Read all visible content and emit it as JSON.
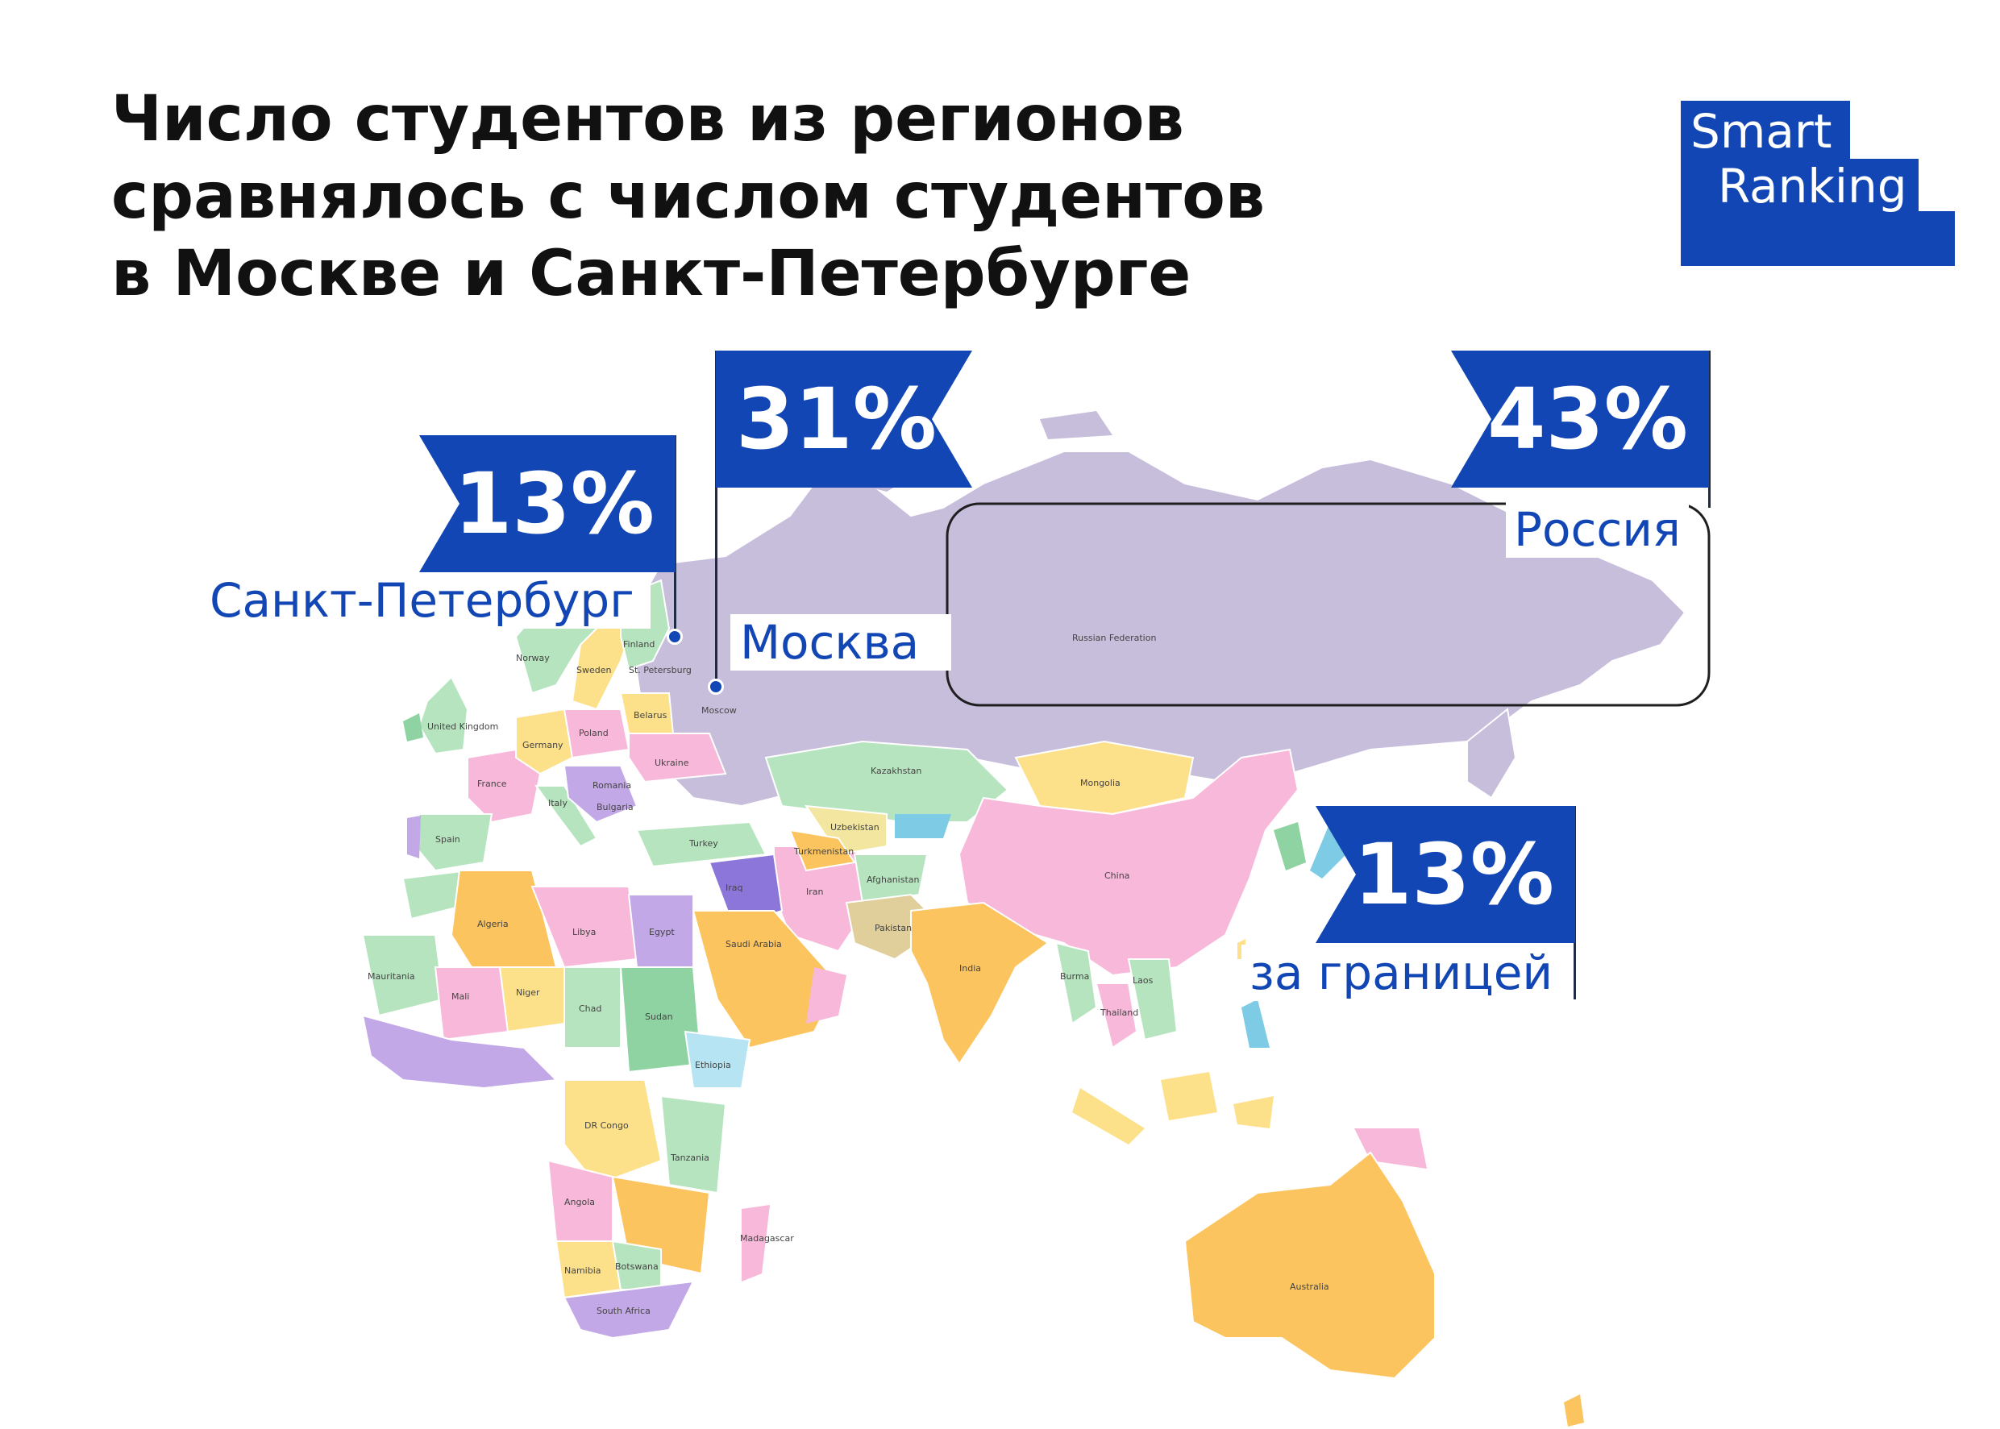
{
  "title_lines": [
    "Число студентов из регионов",
    "сравнялось с числом студентов",
    "в Москве и Санкт-Петербурге"
  ],
  "logo": {
    "word1": "Smart",
    "word2": "Ranking",
    "color": "#1246b4"
  },
  "accent_color": "#1246b4",
  "callouts": {
    "spb": {
      "value": "13%",
      "label": "Санкт-Петербург"
    },
    "moscow": {
      "value": "31%",
      "label": "Москва"
    },
    "russia": {
      "value": "43%",
      "label": "Россия"
    },
    "abroad": {
      "value": "13%",
      "label": "за границей"
    }
  },
  "map_labels": {
    "russia": "Russian Federation",
    "norway": "Norway",
    "finland": "Finland",
    "sweden": "Sweden",
    "uk": "United Kingdom",
    "germany": "Germany",
    "poland": "Poland",
    "belarus": "Belarus",
    "ukraine": "Ukraine",
    "france": "France",
    "spain": "Spain",
    "italy": "Italy",
    "romania": "Romania",
    "bulgaria": "Bulgaria",
    "turkey": "Turkey",
    "kazakhstan": "Kazakhstan",
    "uzbekistan": "Uzbekistan",
    "turkmenistan": "Turkmenistan",
    "mongolia": "Mongolia",
    "china": "China",
    "iran": "Iran",
    "afghanistan": "Afghanistan",
    "pakistan": "Pakistan",
    "india": "India",
    "iraq": "Iraq",
    "saudi": "Saudi Arabia",
    "egypt": "Egypt",
    "libya": "Libya",
    "algeria": "Algeria",
    "mali": "Mali",
    "niger": "Niger",
    "chad": "Chad",
    "sudan": "Sudan",
    "ethiopia": "Ethiopia",
    "drc": "DR Congo",
    "tanzania": "Tanzania",
    "angola": "Angola",
    "namibia": "Namibia",
    "botswana": "Botswana",
    "south_africa": "South Africa",
    "madagascar": "Madagascar",
    "mauritania": "Mauritania",
    "myanmar": "Burma",
    "thailand": "Thailand",
    "laos": "Laos",
    "australia": "Australia",
    "moscow_city": "Moscow",
    "spb_city": "St. Petersburg"
  }
}
